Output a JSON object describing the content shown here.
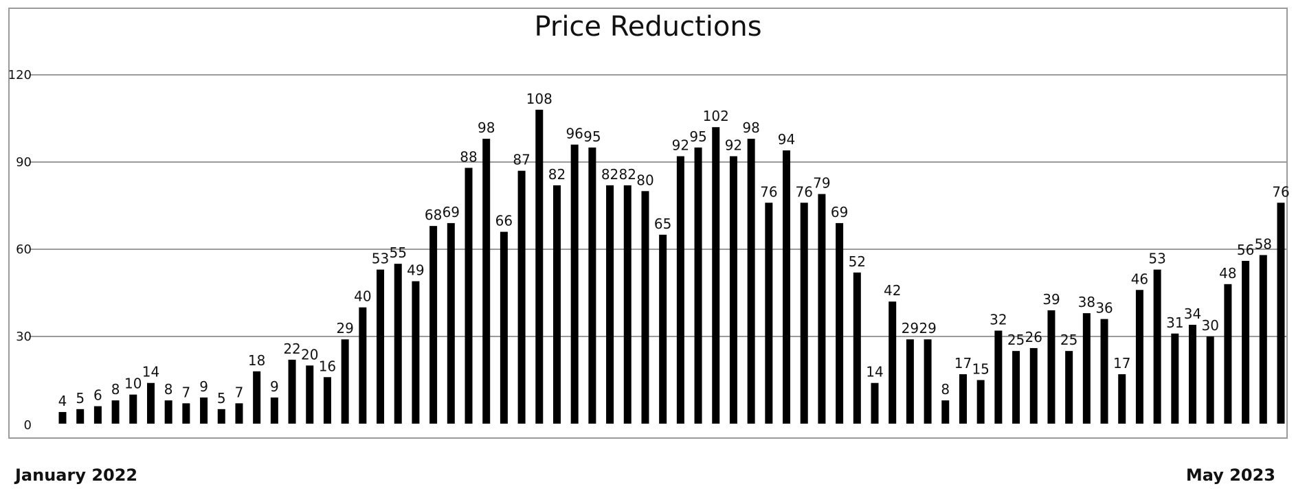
{
  "chart_data": {
    "type": "bar",
    "title": "Price Reductions",
    "xlabel": "",
    "ylabel": "",
    "x_start_label": "January 2022",
    "x_end_label": "May 2023",
    "ylim": [
      0,
      120
    ],
    "yticks": [
      0,
      30,
      60,
      90,
      120
    ],
    "grid": true,
    "bar_color": "#000000",
    "grid_color": "#9a9a9a",
    "values": [
      4,
      5,
      6,
      8,
      10,
      14,
      8,
      7,
      9,
      5,
      7,
      18,
      9,
      22,
      20,
      16,
      29,
      40,
      53,
      55,
      49,
      68,
      69,
      88,
      98,
      66,
      87,
      108,
      82,
      96,
      95,
      82,
      82,
      80,
      65,
      92,
      95,
      102,
      92,
      98,
      76,
      94,
      76,
      79,
      69,
      52,
      14,
      42,
      29,
      29,
      8,
      17,
      15,
      32,
      25,
      26,
      39,
      25,
      38,
      36,
      17,
      46,
      53,
      31,
      34,
      30,
      48,
      56,
      58,
      76
    ]
  }
}
